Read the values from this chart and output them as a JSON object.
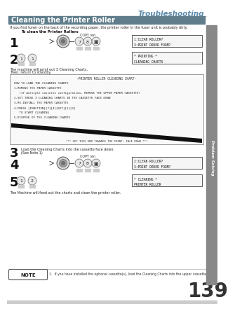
{
  "page_title": "Troubleshooting",
  "section_title": "Cleaning the Printer Roller",
  "section_bg": "#607d8b",
  "section_text_color": "#ffffff",
  "page_bg": "#ffffff",
  "intro_text": "If you find toner on the back of the recording paper, the printer roller in the fuser unit is probably dirty.",
  "sub_title": "To clean the Printer Rollers",
  "step1_display_line1": "1:CLEAN ROLLER?",
  "step1_display_line2": "3:PRINT ORDER FORM?",
  "step2_display_line1": "* PRINTING *",
  "step2_display_line2": "CLEANING CHARTS",
  "step3_text_line1": "Load the Cleaning Charts into the cassette face down.",
  "step3_text_line2": "(See Note 1)",
  "step4_display_line1": "2:CLEAN ROLLER?",
  "step4_display_line2": "3:PRINT ORDER FORM?",
  "step5_display_line1": "* CLEANING *",
  "step5_display_line2": "PRINTER ROLLER",
  "machine_text1": "The machine will print out 3 Cleaning Charts.",
  "machine_text2": "Then, return to standby.",
  "machine_text3": "The Machine will feed out the charts and clean the printer roller.",
  "chart_title": "-PRINTER ROLLER CLEANING CHART-",
  "chart_lines": [
    "HOW TO LOAD THE CLEANING CHARTS",
    "1.REMOVE THE PAPER CASSETTE",
    "   (If multiple cassette configuration, REMOVE THE UPPER PAPER CASSETTE)",
    "2.SET THESE 3 CLEANING CHARTS IN THE CASSETTE FACE DOWN",
    "3.RE-INSTALL THE PAPER CASSETTE",
    "4.PRESS [FUNCTION][7][4][SET][1][2]",
    "   TO START CLEANING",
    "5.DISPOSE OF THE CLEANING CHARTS"
  ],
  "chart_bottom_text": "*** SET THIS END TOWARDS THE FRONT, FACE DOWN ***",
  "note_text": "1.  If you have installed the optional cassette(s), load the Cleaning Charts into the upper cassette.",
  "page_number": "139",
  "sidebar_text": "Problem Solving",
  "sidebar_color": "#888888",
  "title_color": "#5a8aaa",
  "copy_label": "COPY /en"
}
